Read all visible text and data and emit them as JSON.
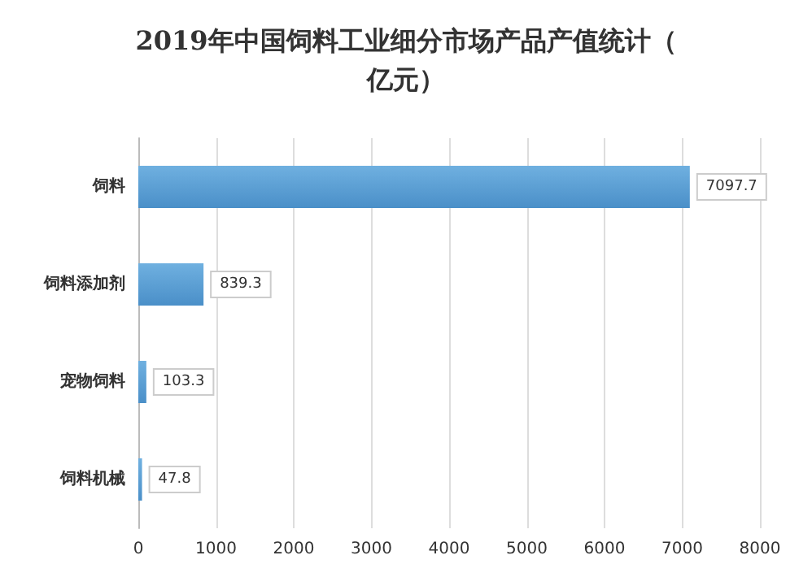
{
  "chart_data": {
    "type": "bar",
    "orientation": "horizontal",
    "title": "2019年中国饲料工业细分市场产品产值统计（亿元）",
    "categories": [
      "饲料",
      "饲料添加剂",
      "宠物饲料",
      "饲料机械"
    ],
    "values": [
      7097.7,
      839.3,
      103.3,
      47.8
    ],
    "color": "#4a8fc8",
    "xlim": [
      0,
      8000
    ],
    "xticks": [
      0,
      1000,
      2000,
      3000,
      4000,
      5000,
      6000,
      7000,
      8000
    ],
    "grid": "x",
    "data_labels": true
  }
}
